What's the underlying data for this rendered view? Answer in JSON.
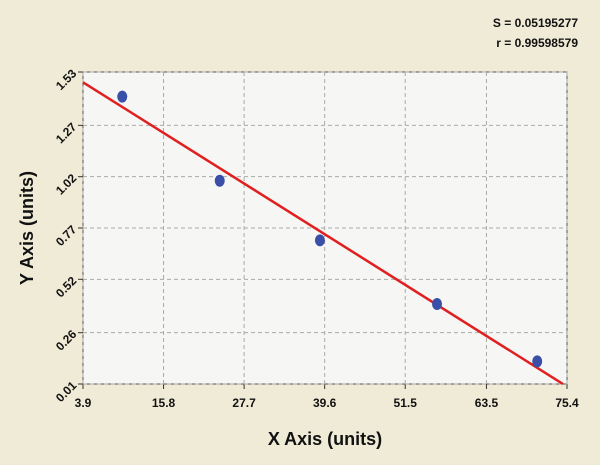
{
  "chart_data": {
    "type": "scatter",
    "annotations": [
      "S = 0.05195277",
      "r = 0.99598579"
    ],
    "xlabel": "X Axis (units)",
    "ylabel": "Y Axis (units)",
    "xlim": [
      3.9,
      75.4
    ],
    "xticks": [
      3.9,
      15.8,
      27.7,
      39.6,
      51.5,
      63.5,
      75.4
    ],
    "ylim": [
      0.01,
      1.53
    ],
    "yticks": [
      0.01,
      0.26,
      0.52,
      0.77,
      1.02,
      1.27,
      1.53
    ],
    "grid": true,
    "series": [
      {
        "mode": "markers",
        "color": "#3a4fa8",
        "x": [
          9.7,
          24.1,
          38.9,
          56.2,
          71.0
        ],
        "values": [
          1.41,
          1.0,
          0.71,
          0.4,
          0.12
        ]
      },
      {
        "mode": "line",
        "color": "#e02020",
        "x": [
          3.9,
          74.8
        ],
        "values": [
          1.48,
          0.01
        ]
      }
    ]
  }
}
